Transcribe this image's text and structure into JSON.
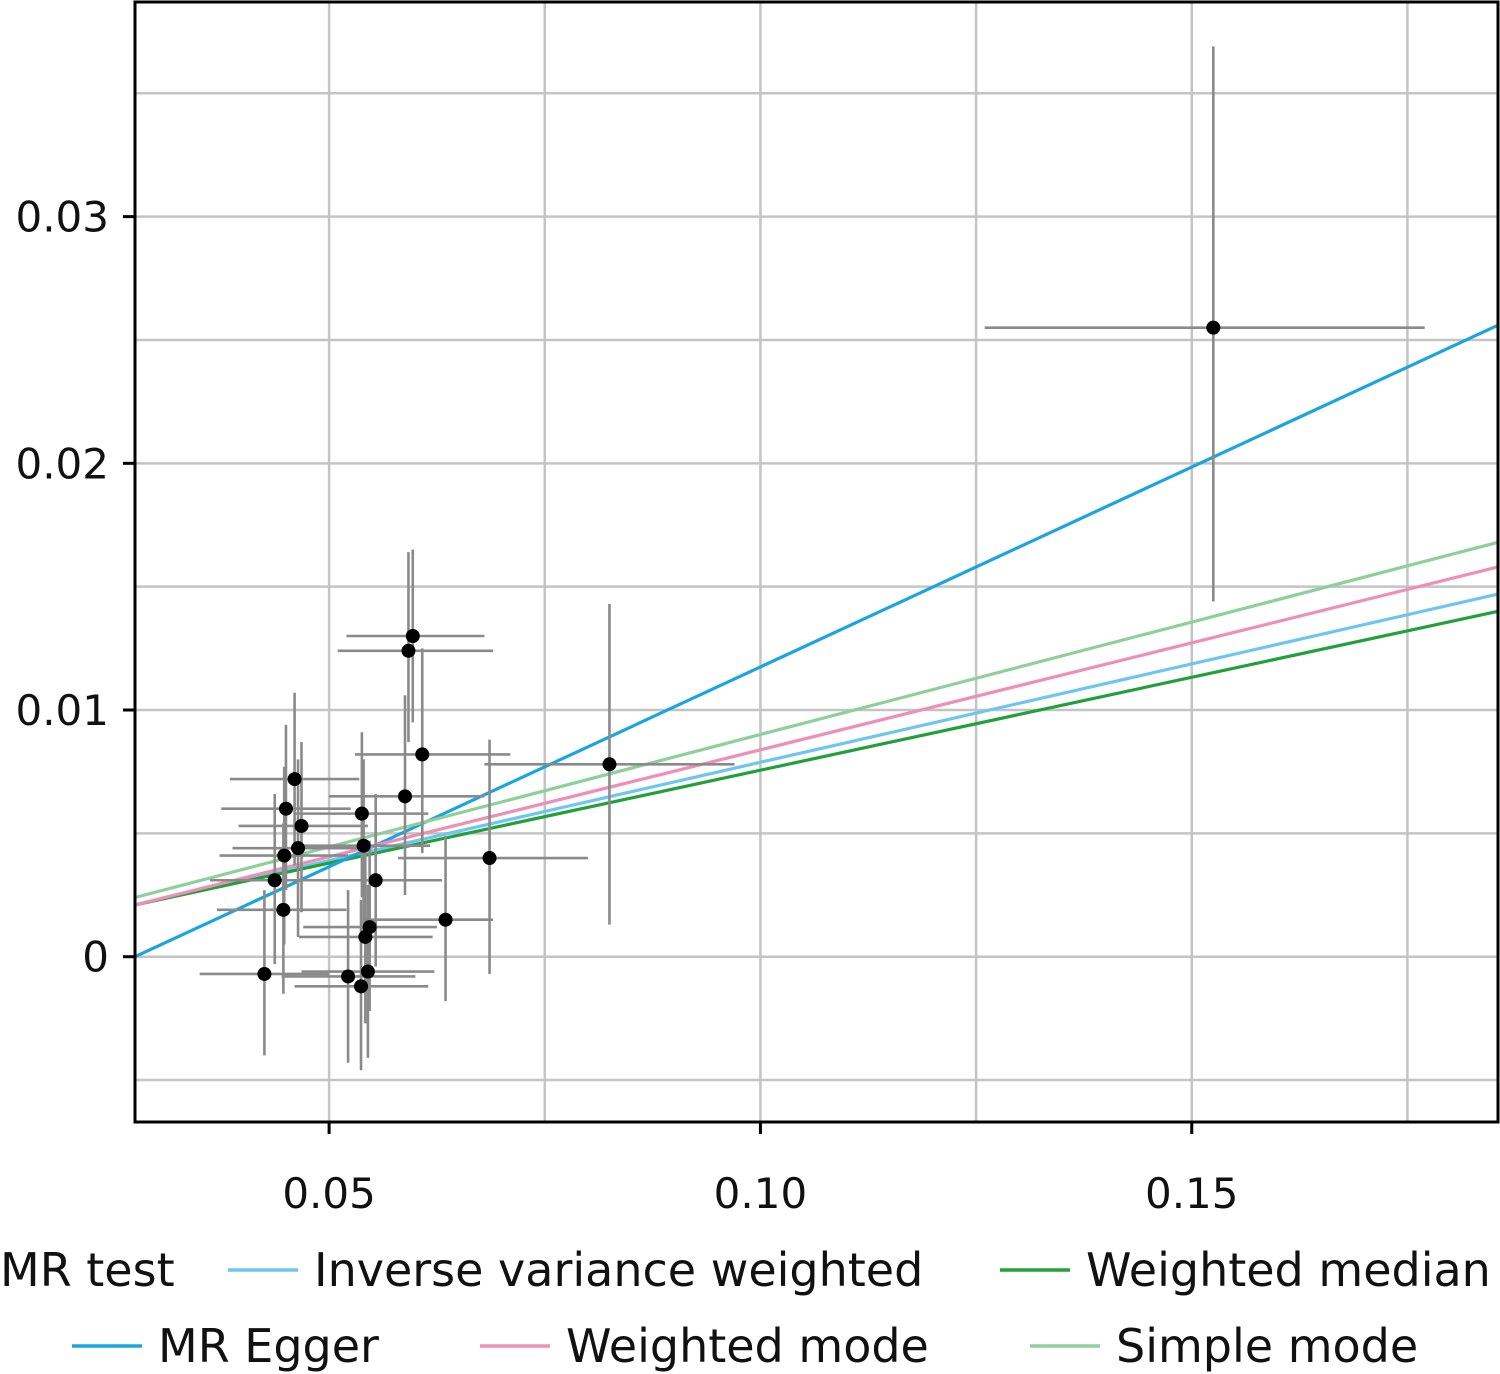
{
  "chart_data": {
    "type": "scatter",
    "title": "",
    "xlabel": "",
    "ylabel": "",
    "xlim": [
      0.0275,
      0.1855
    ],
    "ylim": [
      -0.0067,
      0.0387
    ],
    "grid": true,
    "x_ticks": [
      0.05,
      0.1,
      0.15
    ],
    "x_tick_labels": [
      "0.05",
      "0.10",
      "0.15"
    ],
    "y_ticks": [
      0,
      0.01,
      0.02,
      0.03
    ],
    "y_tick_labels": [
      "0",
      "0.01",
      "0.02",
      "0.03"
    ],
    "points": [
      {
        "x": 0.1525,
        "y": 0.0255,
        "xlo": 0.126,
        "xhi": 0.177,
        "ylo": 0.0144,
        "yhi": 0.0369
      },
      {
        "x": 0.0825,
        "y": 0.0078,
        "xlo": 0.068,
        "xhi": 0.097,
        "ylo": 0.0013,
        "yhi": 0.0143
      },
      {
        "x": 0.0597,
        "y": 0.013,
        "xlo": 0.052,
        "xhi": 0.068,
        "ylo": 0.0095,
        "yhi": 0.0165
      },
      {
        "x": 0.0592,
        "y": 0.0124,
        "xlo": 0.051,
        "xhi": 0.069,
        "ylo": 0.0087,
        "yhi": 0.0164
      },
      {
        "x": 0.0608,
        "y": 0.0082,
        "xlo": 0.053,
        "xhi": 0.071,
        "ylo": 0.0042,
        "yhi": 0.0125
      },
      {
        "x": 0.0588,
        "y": 0.0065,
        "xlo": 0.05,
        "xhi": 0.068,
        "ylo": 0.0025,
        "yhi": 0.0106
      },
      {
        "x": 0.0686,
        "y": 0.004,
        "xlo": 0.058,
        "xhi": 0.08,
        "ylo": -0.0007,
        "yhi": 0.0088
      },
      {
        "x": 0.0635,
        "y": 0.0015,
        "xlo": 0.054,
        "xhi": 0.069,
        "ylo": -0.0018,
        "yhi": 0.0049
      },
      {
        "x": 0.046,
        "y": 0.0072,
        "xlo": 0.0385,
        "xhi": 0.0535,
        "ylo": 0.0037,
        "yhi": 0.0107
      },
      {
        "x": 0.045,
        "y": 0.006,
        "xlo": 0.0375,
        "xhi": 0.0525,
        "ylo": 0.0027,
        "yhi": 0.0094
      },
      {
        "x": 0.0468,
        "y": 0.0053,
        "xlo": 0.0395,
        "xhi": 0.0545,
        "ylo": 0.0018,
        "yhi": 0.0087
      },
      {
        "x": 0.0464,
        "y": 0.0044,
        "xlo": 0.0388,
        "xhi": 0.054,
        "ylo": 0.0008,
        "yhi": 0.008
      },
      {
        "x": 0.0448,
        "y": 0.0041,
        "xlo": 0.0373,
        "xhi": 0.0522,
        "ylo": 0.0005,
        "yhi": 0.0077
      },
      {
        "x": 0.0437,
        "y": 0.0031,
        "xlo": 0.0362,
        "xhi": 0.0512,
        "ylo": -0.0003,
        "yhi": 0.0066
      },
      {
        "x": 0.0447,
        "y": 0.0019,
        "xlo": 0.037,
        "xhi": 0.052,
        "ylo": -0.0015,
        "yhi": 0.0054
      },
      {
        "x": 0.0425,
        "y": -0.0007,
        "xlo": 0.035,
        "xhi": 0.05,
        "ylo": -0.004,
        "yhi": 0.0027
      },
      {
        "x": 0.0538,
        "y": 0.0058,
        "xlo": 0.046,
        "xhi": 0.0615,
        "ylo": 0.0024,
        "yhi": 0.0091
      },
      {
        "x": 0.054,
        "y": 0.0045,
        "xlo": 0.0462,
        "xhi": 0.0617,
        "ylo": 0.001,
        "yhi": 0.008
      },
      {
        "x": 0.0554,
        "y": 0.0031,
        "xlo": 0.0476,
        "xhi": 0.0631,
        "ylo": -0.0004,
        "yhi": 0.0066
      },
      {
        "x": 0.0547,
        "y": 0.0012,
        "xlo": 0.047,
        "xhi": 0.0625,
        "ylo": -0.0022,
        "yhi": 0.0047
      },
      {
        "x": 0.0542,
        "y": 0.0008,
        "xlo": 0.0465,
        "xhi": 0.062,
        "ylo": -0.0027,
        "yhi": 0.0043
      },
      {
        "x": 0.0545,
        "y": -0.0006,
        "xlo": 0.0468,
        "xhi": 0.0622,
        "ylo": -0.0041,
        "yhi": 0.0029
      },
      {
        "x": 0.0522,
        "y": -0.0008,
        "xlo": 0.0445,
        "xhi": 0.06,
        "ylo": -0.0043,
        "yhi": 0.0027
      },
      {
        "x": 0.0537,
        "y": -0.0012,
        "xlo": 0.046,
        "xhi": 0.0615,
        "ylo": -0.0046,
        "yhi": 0.0023
      }
    ],
    "lines": [
      {
        "name": "Inverse variance weighted",
        "color": "#6ec6f0",
        "x1": 0.0275,
        "y1": 0.0021,
        "x2": 0.1855,
        "y2": 0.0147
      },
      {
        "name": "Weighted median",
        "color": "#22a03c",
        "x1": 0.0275,
        "y1": 0.0021,
        "x2": 0.1855,
        "y2": 0.014
      },
      {
        "name": "MR Egger",
        "color": "#1aa5df",
        "x1": 0.0275,
        "y1": 0.0,
        "x2": 0.1855,
        "y2": 0.0256
      },
      {
        "name": "Weighted mode",
        "color": "#ef8fb5",
        "x1": 0.0275,
        "y1": 0.0021,
        "x2": 0.1855,
        "y2": 0.0158
      },
      {
        "name": "Simple mode",
        "color": "#8ecf9c",
        "x1": 0.0275,
        "y1": 0.0024,
        "x2": 0.1855,
        "y2": 0.0168
      }
    ],
    "legend": {
      "title": "MR test",
      "placement": "bottom",
      "entries": [
        {
          "label": "Inverse variance weighted",
          "color": "#6ec6f0"
        },
        {
          "label": "Weighted median",
          "color": "#22a03c"
        },
        {
          "label": "MR Egger",
          "color": "#1aa5df"
        },
        {
          "label": "Weighted mode",
          "color": "#ef8fb5"
        },
        {
          "label": "Simple mode",
          "color": "#8ecf9c"
        }
      ]
    },
    "colors": {
      "point": "#000000",
      "errorbar": "#8a8a8a",
      "grid": "#c4c4c4",
      "axis": "#000000"
    }
  }
}
